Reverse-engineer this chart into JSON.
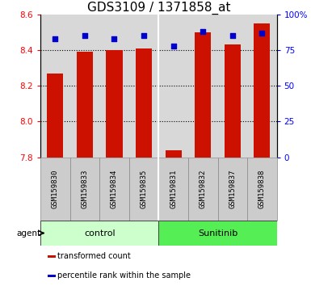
{
  "title": "GDS3109 / 1371858_at",
  "samples": [
    "GSM159830",
    "GSM159833",
    "GSM159834",
    "GSM159835",
    "GSM159831",
    "GSM159832",
    "GSM159837",
    "GSM159838"
  ],
  "red_values": [
    8.27,
    8.39,
    8.4,
    8.41,
    7.84,
    8.5,
    8.43,
    8.55
  ],
  "blue_values": [
    83,
    85,
    83,
    85,
    78,
    88,
    85,
    87
  ],
  "ylim_left": [
    7.8,
    8.6
  ],
  "ylim_right": [
    0,
    100
  ],
  "yticks_left": [
    7.8,
    8.0,
    8.2,
    8.4,
    8.6
  ],
  "yticks_right": [
    0,
    25,
    50,
    75,
    100
  ],
  "ytick_labels_right": [
    "0",
    "25",
    "50",
    "75",
    "100%"
  ],
  "groups": [
    {
      "label": "control",
      "indices": [
        0,
        1,
        2,
        3
      ],
      "color": "#ccffcc"
    },
    {
      "label": "Sunitinib",
      "indices": [
        4,
        5,
        6,
        7
      ],
      "color": "#55ee55"
    }
  ],
  "agent_label": "agent",
  "bar_color": "#cc1100",
  "dot_color": "#0000cc",
  "bar_width": 0.55,
  "legend_items": [
    {
      "color": "#cc1100",
      "label": "transformed count"
    },
    {
      "color": "#0000cc",
      "label": "percentile rank within the sample"
    }
  ],
  "background_color": "#ffffff",
  "plot_bg_color": "#d8d8d8",
  "sample_box_color": "#cccccc",
  "title_fontsize": 11,
  "tick_fontsize": 7.5,
  "sample_fontsize": 6.5,
  "group_fontsize": 8,
  "legend_fontsize": 7
}
